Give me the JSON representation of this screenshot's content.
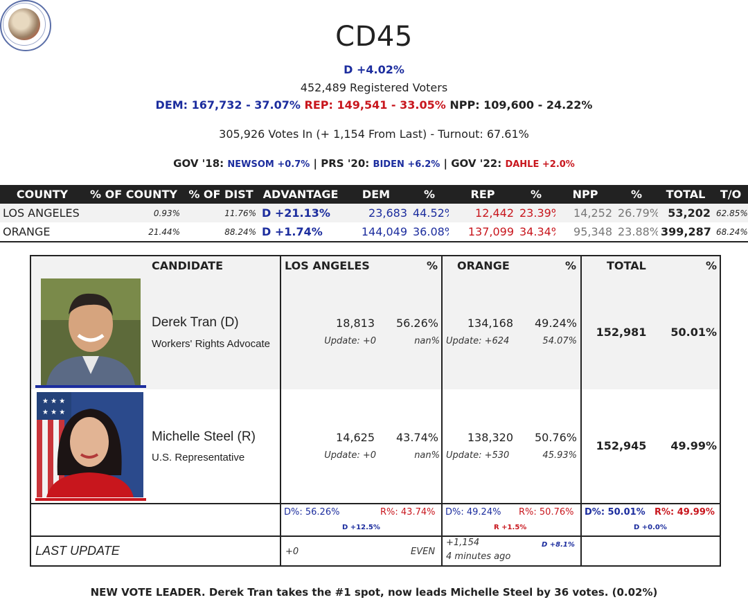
{
  "header": {
    "title": "CD45",
    "advantage": "D +4.02%",
    "registered": "452,489 Registered Voters",
    "dem": "DEM: 167,732 - 37.07%",
    "rep": "REP: 149,541 - 33.05%",
    "npp": "NPP: 109,600 - 24.22%",
    "votes_in": "305,926 Votes In (+ 1,154 From Last) - Turnout: 67.61%",
    "gov18_label": "GOV '18:",
    "gov18_value": "NEWSOM +0.7%",
    "prs20_label": "| PRS '20:",
    "prs20_value": "BIDEN +6.2%",
    "gov22_label": "| GOV '22:",
    "gov22_value": "DAHLE +2.0%"
  },
  "county_table": {
    "columns": [
      "COUNTY",
      "% OF COUNTY",
      "% OF DIST",
      "ADVANTAGE",
      "DEM",
      "%",
      "REP",
      "%",
      "NPP",
      "%",
      "TOTAL",
      "T/O"
    ],
    "rows": [
      [
        "LOS ANGELES",
        "0.93%",
        "11.76%",
        "D +21.13%",
        "23,683",
        "44.52%",
        "12,442",
        "23.39%",
        "14,252",
        "26.79%",
        "53,202",
        "62.85%"
      ],
      [
        "ORANGE",
        "21.44%",
        "88.24%",
        "D +1.74%",
        "144,049",
        "36.08%",
        "137,099",
        "34.34%",
        "95,348",
        "23.88%",
        "399,287",
        "68.24%"
      ]
    ]
  },
  "candidates": {
    "headers": {
      "candidate": "CANDIDATE",
      "la": "LOS ANGELES",
      "la_pct": "%",
      "orange": "ORANGE",
      "orange_pct": "%",
      "total": "TOTAL",
      "total_pct": "%"
    },
    "list": [
      {
        "name": "Derek Tran (D)",
        "title": "Workers' Rights Advocate",
        "la": "18,813",
        "la_pct": "56.26%",
        "la_update": "Update: +0",
        "la_update_pct": "nan%",
        "or": "134,168",
        "or_pct": "49.24%",
        "or_update": "Update: +624",
        "or_update_pct": "54.07%",
        "total": "152,981",
        "total_pct": "50.01%"
      },
      {
        "name": "Michelle Steel (R)",
        "title": "U.S. Representative",
        "la": "14,625",
        "la_pct": "43.74%",
        "la_update": "Update: +0",
        "la_update_pct": "nan%",
        "or": "138,320",
        "or_pct": "50.76%",
        "or_update": "Update: +530",
        "or_update_pct": "45.93%",
        "total": "152,945",
        "total_pct": "49.99%"
      }
    ],
    "summary": {
      "la_d": "D%: 56.26%",
      "la_r": "R%: 43.74%",
      "la_margin": "D +12.5%",
      "or_d": "D%: 49.24%",
      "or_r": "R%: 50.76%",
      "or_margin": "R +1.5%",
      "tot_d": "D%: 50.01%",
      "tot_r": "R%: 49.99%",
      "tot_margin": "D +0.0%"
    },
    "last_update": {
      "label": "LAST UPDATE",
      "la": "+0",
      "la_status": "EVEN",
      "or_count": "+1,154",
      "or_time": "4 minutes ago",
      "or_margin": "D +8.1%"
    }
  },
  "leader_note": "NEW VOTE LEADER. Derek Tran takes the #1 spot, now leads Michelle Steel by 36 votes. (0.02%)",
  "colors": {
    "dem": "#1c2d9e",
    "rep": "#c8161d",
    "npp": "#777777"
  }
}
